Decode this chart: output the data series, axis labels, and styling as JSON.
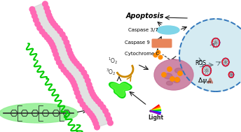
{
  "bg_color": "#ffffff",
  "green_highlight_color": "#90ee90",
  "polymer_color": "#2d2d2d",
  "membrane_pink": "#ff69b4",
  "membrane_gray": "#d0d0d0",
  "green_chains": "#00cc00",
  "light_label": "Light",
  "o2_triple": "$^3$O$_2$",
  "o2_singlet": "$^1$O$_2$",
  "mitochondria_color": "#c8789c",
  "delta_psi": "$\\Delta\\psi_m$",
  "ros_label": "ROS",
  "cytochrome_label": "Cytochrome C",
  "caspase9_label": "Caspase 9",
  "caspase37_label": "Caspase 3/7",
  "apoptosis_label": "Apoptosis",
  "cell_color": "#add8e6",
  "arrow_color": "#1a1a1a",
  "red_arrow_color": "#cc2200",
  "orange_dot_color": "#ff8c00",
  "caspase9_bar_color": "#e8855a",
  "caspase37_oval_color": "#7fd5e8",
  "dna_blue": "#1a1aee",
  "dna_red": "#ee1a1a",
  "arc_color": "#cc8800"
}
